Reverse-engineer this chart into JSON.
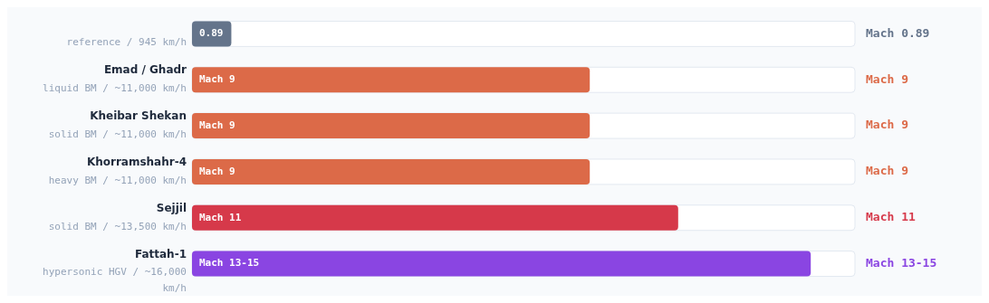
{
  "chart_data": {
    "type": "bar",
    "orientation": "horizontal",
    "categories": [
      "\nreference / 945 km/h",
      "Emad / Ghadr\nliquid BM / ~11,000 km/h",
      "Kheibar Shekan\nsolid BM / ~11,000 km/h",
      "Khorramshahr-4\nheavy BM / ~11,000 km/h",
      "Sejjil\nsolid BM / ~13,500 km/h",
      "Fattah-1\nhypersonic HGV / ~16,000 km/h"
    ],
    "values": [
      0.89,
      9,
      9,
      9,
      11,
      14
    ],
    "colors": [
      "#64748b",
      "#dc6a48",
      "#dc6a48",
      "#dc6a48",
      "#d6394a",
      "#8a45e2"
    ],
    "value_labels": [
      "0.89",
      "Mach 9",
      "Mach 9",
      "Mach 9",
      "Mach 11",
      "Mach 13-15"
    ],
    "annotations": [
      "Mach 0.89",
      "Mach 9",
      "Mach 9",
      "Mach 9",
      "Mach 11",
      "Mach 13-15"
    ],
    "xlim": [
      0,
      15
    ]
  }
}
